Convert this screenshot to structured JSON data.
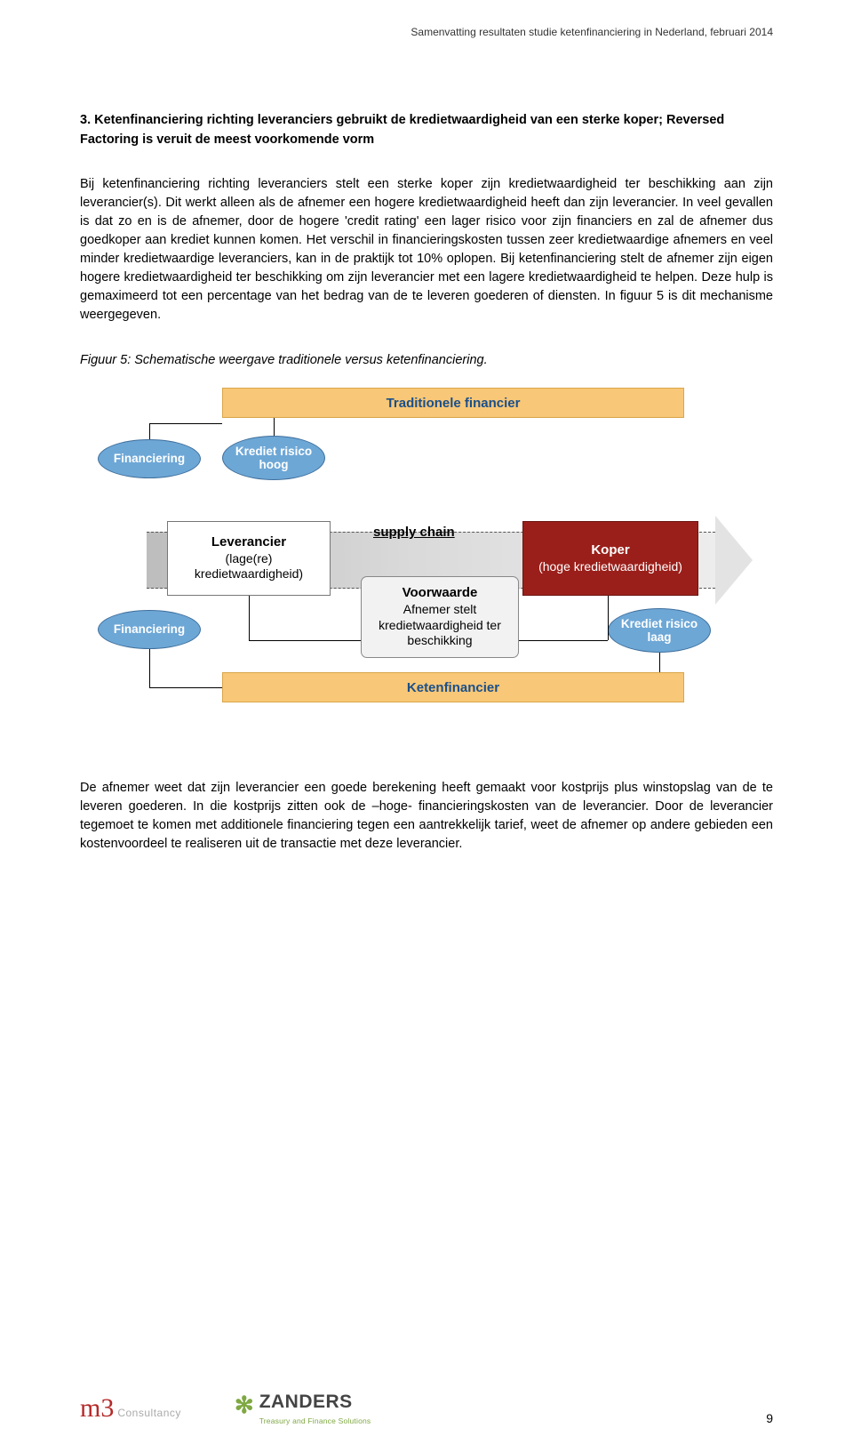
{
  "header": {
    "text": "Samenvatting resultaten studie ketenfinanciering in Nederland, februari 2014"
  },
  "section": {
    "heading": "3. Ketenfinanciering richting leveranciers gebruikt de kredietwaardigheid van een sterke koper; Reversed Factoring is veruit de meest voorkomende vorm",
    "para1": "Bij ketenfinanciering richting leveranciers stelt een sterke koper zijn kredietwaardigheid ter beschikking aan zijn leverancier(s). Dit werkt alleen als de afnemer een hogere kredietwaardigheid heeft dan zijn leverancier. In veel gevallen is dat zo en is de afnemer, door de hogere 'credit rating' een lager risico voor zijn financiers en zal de afnemer dus goedkoper aan krediet kunnen komen. Het verschil in financieringskosten tussen zeer kredietwaardige afnemers en veel minder kredietwaardige leveranciers, kan in de praktijk tot 10% oplopen. Bij ketenfinanciering stelt de afnemer zijn eigen hogere kredietwaardigheid ter beschikking om zijn leverancier met een lagere kredietwaardigheid te helpen. Deze hulp is gemaximeerd tot een percentage van het bedrag van de te leveren goederen of diensten. In figuur 5 is dit mechanisme weergegeven.",
    "figure_caption": "Figuur 5: Schematische weergave traditionele versus ketenfinanciering.",
    "para2": "De afnemer weet dat zijn leverancier een goede berekening heeft gemaakt voor kostprijs plus winstopslag van de te leveren goederen. In die kostprijs zitten ook de –hoge- financieringskosten van de leverancier. Door de leverancier tegemoet te komen met additionele financiering tegen een aantrekkelijk tarief, weet de afnemer op andere gebieden een kostenvoordeel te realiseren uit de transactie met deze leverancier."
  },
  "diagram": {
    "type": "flowchart",
    "colors": {
      "bar_bg": "#f8c777",
      "bar_border": "#d9a64a",
      "bar_text": "#1a4f8a",
      "ellipse_bg": "#6da7d6",
      "ellipse_border": "#3f6f9c",
      "ellipse_text": "#ffffff",
      "koper_bg": "#9a1f1a",
      "koper_text": "#ffffff",
      "white_box_bg": "#ffffff",
      "voorwaarde_bg": "#f2f2f2",
      "arrow_band": "#d9d9d9"
    },
    "bar_top": "Traditionele financier",
    "bar_bottom": "Ketenfinancier",
    "ell_fin_top": "Financiering",
    "ell_risk_top": "Krediet risico hoog",
    "ell_fin_bot": "Financiering",
    "ell_risk_bot": "Krediet risico laag",
    "supply_chain": "supply chain",
    "leverancier": {
      "title": "Leverancier",
      "sub": "(lage(re) kredietwaardigheid)"
    },
    "koper": {
      "title": "Koper",
      "sub": "(hoge kredietwaardigheid)"
    },
    "voorwaarde": {
      "title": "Voorwaarde",
      "sub": "Afnemer stelt kredietwaardigheid ter beschikking"
    }
  },
  "footer": {
    "logo_m3_main": "m3",
    "logo_m3_sub": "Consultancy",
    "logo_z_icon": "✻",
    "logo_z_main": "ZANDERS",
    "logo_z_sub": "Treasury and Finance Solutions",
    "page_number": "9"
  }
}
